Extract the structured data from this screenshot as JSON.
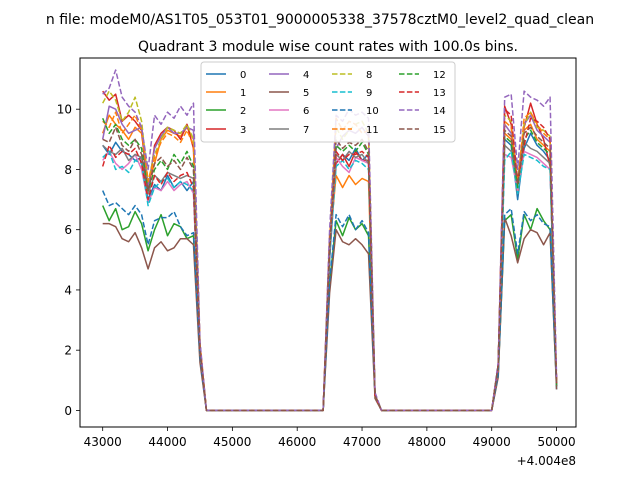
{
  "figure": {
    "suptitle": "n file: modeM0/AS1T05_053T01_9000005338_37578cztM0_level2_quad_clean",
    "title": "Quadrant 3 module wise count rates with 100.0s bins.",
    "offset_label": "+4.004e8"
  },
  "chart_data": {
    "type": "line",
    "title": "Quadrant 3 module wise count rates with 100.0s bins.",
    "xlabel": "",
    "ylabel": "",
    "x_offset": 400400000,
    "xlim": [
      42650,
      50300
    ],
    "ylim": [
      -0.55,
      11.7
    ],
    "xticks": [
      43000,
      44000,
      45000,
      46000,
      47000,
      48000,
      49000,
      50000
    ],
    "yticks": [
      0,
      2,
      4,
      6,
      8,
      10
    ],
    "grid": false,
    "legend": {
      "placement": "top-center",
      "columns": 4
    },
    "x": [
      43000,
      43100,
      43200,
      43300,
      43400,
      43500,
      43600,
      43700,
      43800,
      43900,
      44000,
      44100,
      44200,
      44300,
      44400,
      44500,
      44600,
      44700,
      44800,
      44900,
      45000,
      45100,
      45200,
      45300,
      45400,
      45500,
      45600,
      45700,
      45800,
      45900,
      46000,
      46100,
      46200,
      46300,
      46400,
      46500,
      46600,
      46700,
      46800,
      46900,
      47000,
      47100,
      47200,
      47300,
      47400,
      47500,
      47600,
      47700,
      47800,
      47900,
      48000,
      48100,
      48200,
      48300,
      48400,
      48500,
      48600,
      48700,
      48800,
      48900,
      49000,
      49100,
      49200,
      49300,
      49400,
      49500,
      49600,
      49700,
      49800,
      49900,
      50000
    ],
    "series": [
      {
        "name": "0",
        "color": "#1f77b4",
        "dashed": false,
        "values": [
          8.8,
          8.5,
          8.9,
          8.6,
          8.5,
          8.3,
          8.4,
          7.0,
          7.5,
          7.3,
          7.8,
          7.4,
          7.6,
          7.3,
          7.6,
          2.0,
          0,
          0,
          0,
          0,
          0,
          0,
          0,
          0,
          0,
          0,
          0,
          0,
          0,
          0,
          0,
          0,
          0,
          0,
          0,
          5.0,
          8.2,
          8.5,
          8.3,
          8.7,
          8.3,
          8.5,
          0.5,
          0,
          0,
          0,
          0,
          0,
          0,
          0,
          0,
          0,
          0,
          0,
          0,
          0,
          0,
          0,
          0,
          0,
          0,
          1.5,
          9.0,
          8.8,
          7.0,
          8.7,
          9.2,
          8.8,
          8.6,
          8.3,
          0.7
        ]
      },
      {
        "name": "1",
        "color": "#ff7f0e",
        "dashed": false,
        "values": [
          9.2,
          9.8,
          9.5,
          9.3,
          9.0,
          9.4,
          9.2,
          7.5,
          8.2,
          9.0,
          9.3,
          9.2,
          9.1,
          9.4,
          9.0,
          2.2,
          0,
          0,
          0,
          0,
          0,
          0,
          0,
          0,
          0,
          0,
          0,
          0,
          0,
          0,
          0,
          0,
          0,
          0,
          0,
          5.5,
          7.8,
          7.4,
          7.8,
          7.5,
          7.7,
          7.6,
          0.5,
          0,
          0,
          0,
          0,
          0,
          0,
          0,
          0,
          0,
          0,
          0,
          0,
          0,
          0,
          0,
          0,
          0,
          0,
          1.5,
          9.2,
          9.0,
          7.2,
          9.3,
          9.5,
          9.0,
          8.8,
          8.6,
          0.8
        ]
      },
      {
        "name": "2",
        "color": "#2ca02c",
        "dashed": false,
        "values": [
          6.8,
          6.3,
          6.7,
          6.0,
          6.1,
          6.6,
          6.2,
          5.3,
          6.0,
          6.5,
          5.8,
          6.2,
          6.1,
          5.7,
          5.8,
          1.8,
          0,
          0,
          0,
          0,
          0,
          0,
          0,
          0,
          0,
          0,
          0,
          0,
          0,
          0,
          0,
          0,
          0,
          0,
          0,
          4.2,
          6.3,
          5.8,
          6.4,
          6.0,
          6.2,
          5.8,
          0.5,
          0,
          0,
          0,
          0,
          0,
          0,
          0,
          0,
          0,
          0,
          0,
          0,
          0,
          0,
          0,
          0,
          0,
          0,
          1.2,
          6.3,
          6.5,
          5.0,
          6.5,
          6.0,
          6.7,
          6.3,
          6.0,
          0.8
        ]
      },
      {
        "name": "3",
        "color": "#d62728",
        "dashed": false,
        "values": [
          10.6,
          10.3,
          10.5,
          9.6,
          9.8,
          9.6,
          9.3,
          7.2,
          8.8,
          9.2,
          9.4,
          9.3,
          9.0,
          9.5,
          8.7,
          2.2,
          0,
          0,
          0,
          0,
          0,
          0,
          0,
          0,
          0,
          0,
          0,
          0,
          0,
          0,
          0,
          0,
          0,
          0,
          0,
          5.8,
          8.2,
          8.5,
          8.1,
          8.6,
          8.3,
          8.3,
          0.5,
          0,
          0,
          0,
          0,
          0,
          0,
          0,
          0,
          0,
          0,
          0,
          0,
          0,
          0,
          0,
          0,
          0,
          0,
          1.5,
          10.1,
          9.5,
          7.5,
          9.4,
          10.2,
          9.5,
          9.0,
          8.1,
          1.0
        ]
      },
      {
        "name": "4",
        "color": "#9467bd",
        "dashed": false,
        "values": [
          9.0,
          10.1,
          10.0,
          9.5,
          9.2,
          9.3,
          9.4,
          7.4,
          8.7,
          9.1,
          9.4,
          9.2,
          9.2,
          9.4,
          9.3,
          2.1,
          0,
          0,
          0,
          0,
          0,
          0,
          0,
          0,
          0,
          0,
          0,
          0,
          0,
          0,
          0,
          0,
          0,
          0,
          0,
          5.5,
          8.7,
          9.1,
          9.3,
          9.2,
          9.4,
          9.1,
          0.5,
          0,
          0,
          0,
          0,
          0,
          0,
          0,
          0,
          0,
          0,
          0,
          0,
          0,
          0,
          0,
          0,
          0,
          0,
          1.5,
          9.5,
          9.2,
          7.4,
          9.5,
          9.8,
          9.3,
          9.1,
          8.9,
          0.9
        ]
      },
      {
        "name": "5",
        "color": "#8c564b",
        "dashed": false,
        "values": [
          6.2,
          6.2,
          6.1,
          5.7,
          5.6,
          5.9,
          5.4,
          4.7,
          5.4,
          5.6,
          5.3,
          5.4,
          5.7,
          5.7,
          5.5,
          1.6,
          0,
          0,
          0,
          0,
          0,
          0,
          0,
          0,
          0,
          0,
          0,
          0,
          0,
          0,
          0,
          0,
          0,
          0,
          0,
          3.9,
          6.0,
          5.6,
          5.5,
          5.7,
          5.5,
          5.2,
          0.4,
          0,
          0,
          0,
          0,
          0,
          0,
          0,
          0,
          0,
          0,
          0,
          0,
          0,
          0,
          0,
          0,
          0,
          0,
          1.1,
          6.4,
          5.8,
          4.9,
          5.7,
          6.0,
          5.9,
          5.5,
          5.9,
          0.7
        ]
      },
      {
        "name": "6",
        "color": "#e377c2",
        "dashed": false,
        "values": [
          8.3,
          8.6,
          8.2,
          8.0,
          8.2,
          8.5,
          8.0,
          6.9,
          7.4,
          7.3,
          7.6,
          7.3,
          7.5,
          7.6,
          7.2,
          1.9,
          0,
          0,
          0,
          0,
          0,
          0,
          0,
          0,
          0,
          0,
          0,
          0,
          0,
          0,
          0,
          0,
          0,
          0,
          0,
          5.2,
          8.4,
          8.1,
          7.9,
          8.4,
          8.3,
          8.2,
          0.5,
          0,
          0,
          0,
          0,
          0,
          0,
          0,
          0,
          0,
          0,
          0,
          0,
          0,
          0,
          0,
          0,
          0,
          0,
          1.4,
          8.5,
          8.4,
          7.3,
          8.6,
          8.5,
          8.4,
          8.2,
          8.0,
          0.8
        ]
      },
      {
        "name": "7",
        "color": "#7f7f7f",
        "dashed": false,
        "values": [
          8.8,
          8.6,
          8.5,
          8.7,
          8.3,
          8.5,
          8.4,
          7.2,
          7.8,
          7.6,
          7.9,
          7.8,
          7.7,
          7.8,
          7.7,
          2.0,
          0,
          0,
          0,
          0,
          0,
          0,
          0,
          0,
          0,
          0,
          0,
          0,
          0,
          0,
          0,
          0,
          0,
          0,
          0,
          5.3,
          8.5,
          8.3,
          8.6,
          8.4,
          8.5,
          8.2,
          0.5,
          0,
          0,
          0,
          0,
          0,
          0,
          0,
          0,
          0,
          0,
          0,
          0,
          0,
          0,
          0,
          0,
          0,
          0,
          1.5,
          8.8,
          8.6,
          7.5,
          8.9,
          8.7,
          8.6,
          8.4,
          8.2,
          0.8
        ]
      },
      {
        "name": "8",
        "color": "#bcbd22",
        "dashed": true,
        "values": [
          10.2,
          10.6,
          10.3,
          9.6,
          9.9,
          10.4,
          9.6,
          7.6,
          8.5,
          9.0,
          9.4,
          9.3,
          9.2,
          9.5,
          9.0,
          2.2,
          0,
          0,
          0,
          0,
          0,
          0,
          0,
          0,
          0,
          0,
          0,
          0,
          0,
          0,
          0,
          0,
          0,
          0,
          0,
          5.6,
          9.4,
          9.0,
          9.3,
          9.5,
          9.6,
          9.2,
          0.5,
          0,
          0,
          0,
          0,
          0,
          0,
          0,
          0,
          0,
          0,
          0,
          0,
          0,
          0,
          0,
          0,
          0,
          0,
          1.5,
          9.8,
          9.6,
          7.6,
          9.5,
          9.9,
          9.4,
          9.3,
          9.1,
          0.9
        ]
      },
      {
        "name": "9",
        "color": "#17becf",
        "dashed": true,
        "values": [
          8.4,
          8.6,
          8.0,
          8.1,
          7.9,
          8.3,
          8.2,
          6.8,
          7.4,
          7.6,
          7.7,
          7.4,
          7.6,
          7.5,
          7.3,
          1.9,
          0,
          0,
          0,
          0,
          0,
          0,
          0,
          0,
          0,
          0,
          0,
          0,
          0,
          0,
          0,
          0,
          0,
          0,
          0,
          5.1,
          8.1,
          8.3,
          8.0,
          8.3,
          8.2,
          8.0,
          0.5,
          0,
          0,
          0,
          0,
          0,
          0,
          0,
          0,
          0,
          0,
          0,
          0,
          0,
          0,
          0,
          0,
          0,
          0,
          1.4,
          8.3,
          8.6,
          7.2,
          8.5,
          8.4,
          8.3,
          8.1,
          8.0,
          0.8
        ]
      },
      {
        "name": "10",
        "color": "#1f77b4",
        "dashed": true,
        "values": [
          7.3,
          6.8,
          6.9,
          6.7,
          6.5,
          6.8,
          6.5,
          5.5,
          6.3,
          6.4,
          6.4,
          6.6,
          6.1,
          5.8,
          5.9,
          1.8,
          0,
          0,
          0,
          0,
          0,
          0,
          0,
          0,
          0,
          0,
          0,
          0,
          0,
          0,
          0,
          0,
          0,
          0,
          0,
          4.3,
          6.5,
          6.1,
          6.5,
          6.0,
          6.3,
          5.9,
          0.5,
          0,
          0,
          0,
          0,
          0,
          0,
          0,
          0,
          0,
          0,
          0,
          0,
          0,
          0,
          0,
          0,
          0,
          0,
          1.2,
          6.5,
          6.7,
          5.2,
          6.6,
          6.3,
          6.5,
          6.2,
          6.1,
          0.8
        ]
      },
      {
        "name": "11",
        "color": "#ff7f0e",
        "dashed": true,
        "values": [
          9.6,
          9.4,
          9.9,
          9.2,
          9.5,
          9.8,
          9.3,
          7.6,
          8.4,
          8.9,
          9.2,
          9.1,
          8.9,
          9.3,
          8.8,
          2.2,
          0,
          0,
          0,
          0,
          0,
          0,
          0,
          0,
          0,
          0,
          0,
          0,
          0,
          0,
          0,
          0,
          0,
          0,
          0,
          5.6,
          9.7,
          9.3,
          9.6,
          9.5,
          9.2,
          9.3,
          0.5,
          0,
          0,
          0,
          0,
          0,
          0,
          0,
          0,
          0,
          0,
          0,
          0,
          0,
          0,
          0,
          0,
          0,
          0,
          1.5,
          9.6,
          9.4,
          7.5,
          9.7,
          9.9,
          9.5,
          9.2,
          9.0,
          0.9
        ]
      },
      {
        "name": "12",
        "color": "#2ca02c",
        "dashed": true,
        "values": [
          9.7,
          9.2,
          9.5,
          9.0,
          8.8,
          9.0,
          8.7,
          7.3,
          8.0,
          8.3,
          8.0,
          8.5,
          8.2,
          8.6,
          8.1,
          2.0,
          0,
          0,
          0,
          0,
          0,
          0,
          0,
          0,
          0,
          0,
          0,
          0,
          0,
          0,
          0,
          0,
          0,
          0,
          0,
          5.4,
          8.8,
          8.6,
          8.8,
          8.6,
          8.9,
          8.5,
          0.5,
          0,
          0,
          0,
          0,
          0,
          0,
          0,
          0,
          0,
          0,
          0,
          0,
          0,
          0,
          0,
          0,
          0,
          0,
          1.5,
          9.1,
          8.9,
          7.4,
          9.0,
          9.3,
          8.9,
          8.7,
          8.5,
          0.8
        ]
      },
      {
        "name": "13",
        "color": "#d62728",
        "dashed": true,
        "values": [
          8.1,
          8.8,
          8.4,
          8.6,
          8.5,
          8.7,
          8.2,
          7.0,
          7.8,
          7.5,
          7.9,
          7.6,
          7.8,
          7.9,
          7.4,
          2.0,
          0,
          0,
          0,
          0,
          0,
          0,
          0,
          0,
          0,
          0,
          0,
          0,
          0,
          0,
          0,
          0,
          0,
          0,
          0,
          5.3,
          8.6,
          8.3,
          8.5,
          8.5,
          8.6,
          8.4,
          0.5,
          0,
          0,
          0,
          0,
          0,
          0,
          0,
          0,
          0,
          0,
          0,
          0,
          0,
          0,
          0,
          0,
          0,
          0,
          1.5,
          10.0,
          9.8,
          7.6,
          8.8,
          9.7,
          9.6,
          9.4,
          9.0,
          0.9
        ]
      },
      {
        "name": "14",
        "color": "#9467bd",
        "dashed": true,
        "values": [
          10.5,
          10.7,
          11.3,
          10.4,
          10.1,
          9.9,
          9.4,
          8.0,
          9.8,
          9.5,
          9.9,
          9.7,
          10.1,
          9.8,
          10.2,
          2.3,
          0,
          0,
          0,
          0,
          0,
          0,
          0,
          0,
          0,
          0,
          0,
          0,
          0,
          0,
          0,
          0,
          0,
          0,
          0,
          6.0,
          9.8,
          9.6,
          10.0,
          9.8,
          9.9,
          9.7,
          0.6,
          0,
          0,
          0,
          0,
          0,
          0,
          0,
          0,
          0,
          0,
          0,
          0,
          0,
          0,
          0,
          0,
          0,
          0,
          1.6,
          10.4,
          10.5,
          8.0,
          10.6,
          10.4,
          10.3,
          10.1,
          10.4,
          1.1
        ]
      },
      {
        "name": "15",
        "color": "#8c564b",
        "dashed": true,
        "values": [
          9.0,
          8.9,
          9.4,
          8.8,
          8.6,
          9.0,
          8.5,
          7.3,
          8.2,
          8.4,
          8.1,
          8.3,
          8.0,
          8.4,
          8.0,
          2.0,
          0,
          0,
          0,
          0,
          0,
          0,
          0,
          0,
          0,
          0,
          0,
          0,
          0,
          0,
          0,
          0,
          0,
          0,
          0,
          5.4,
          9.0,
          8.7,
          8.9,
          8.8,
          9.0,
          8.6,
          0.5,
          0,
          0,
          0,
          0,
          0,
          0,
          0,
          0,
          0,
          0,
          0,
          0,
          0,
          0,
          0,
          0,
          0,
          0,
          1.5,
          9.3,
          9.1,
          7.5,
          9.2,
          9.4,
          9.1,
          8.9,
          8.7,
          0.8
        ]
      }
    ]
  }
}
